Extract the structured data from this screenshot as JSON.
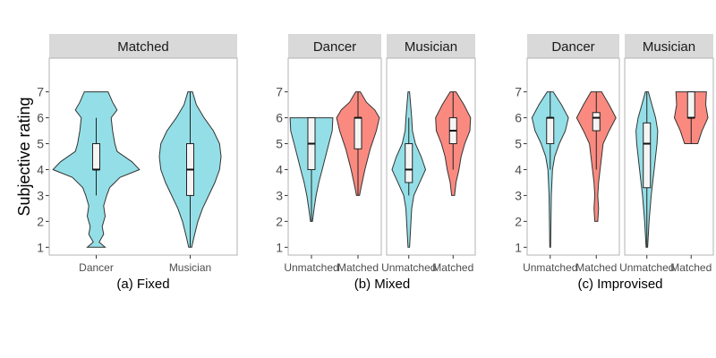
{
  "chart_data": {
    "type": "violin",
    "ylabel": "Subjective rating",
    "ylim": [
      0.7,
      8.3
    ],
    "yticks": [
      1,
      2,
      3,
      4,
      5,
      6,
      7
    ],
    "grid": false,
    "colors": {
      "Unmatched": "#94DFE7",
      "Matched": "#FA8A80",
      "Fixed": "#94DFE7"
    },
    "panels": [
      {
        "caption": "(a) Fixed",
        "facets": [
          {
            "strip": "Matched",
            "categories": [
              "Dancer",
              "Musician"
            ],
            "violins": [
              {
                "category": "Dancer",
                "fill": "Fixed",
                "median": 4,
                "q1": 4,
                "q3": 5,
                "whisker_low": 3,
                "whisker_high": 6,
                "density": [
                  [
                    1,
                    0.12
                  ],
                  [
                    1.2,
                    0.04
                  ],
                  [
                    1.5,
                    0.1
                  ],
                  [
                    1.8,
                    0.08
                  ],
                  [
                    2.2,
                    0.12
                  ],
                  [
                    2.6,
                    0.1
                  ],
                  [
                    3,
                    0.14
                  ],
                  [
                    3.3,
                    0.18
                  ],
                  [
                    3.7,
                    0.32
                  ],
                  [
                    4,
                    0.58
                  ],
                  [
                    4.3,
                    0.48
                  ],
                  [
                    4.7,
                    0.28
                  ],
                  [
                    5,
                    0.25
                  ],
                  [
                    5.5,
                    0.22
                  ],
                  [
                    6,
                    0.2
                  ],
                  [
                    6.3,
                    0.28
                  ],
                  [
                    6.6,
                    0.22
                  ],
                  [
                    7,
                    0.16
                  ]
                ]
              },
              {
                "category": "Musician",
                "fill": "Fixed",
                "median": 4,
                "q1": 3,
                "q3": 5,
                "whisker_low": 1,
                "whisker_high": 7,
                "density": [
                  [
                    1,
                    0.02
                  ],
                  [
                    1.4,
                    0.05
                  ],
                  [
                    2,
                    0.1
                  ],
                  [
                    2.5,
                    0.16
                  ],
                  [
                    3,
                    0.24
                  ],
                  [
                    3.5,
                    0.32
                  ],
                  [
                    4,
                    0.38
                  ],
                  [
                    4.5,
                    0.4
                  ],
                  [
                    5,
                    0.38
                  ],
                  [
                    5.5,
                    0.3
                  ],
                  [
                    6,
                    0.18
                  ],
                  [
                    6.5,
                    0.08
                  ],
                  [
                    7,
                    0.03
                  ]
                ]
              }
            ]
          }
        ]
      },
      {
        "caption": "(b) Mixed",
        "facets": [
          {
            "strip": "Dancer",
            "categories": [
              "Unmatched",
              "Matched"
            ],
            "violins": [
              {
                "category": "Unmatched",
                "fill": "Unmatched",
                "median": 5,
                "q1": 4,
                "q3": 6,
                "whisker_low": 2,
                "whisker_high": 6,
                "density": [
                  [
                    2,
                    0.03
                  ],
                  [
                    2.5,
                    0.08
                  ],
                  [
                    3,
                    0.14
                  ],
                  [
                    3.5,
                    0.22
                  ],
                  [
                    4,
                    0.32
                  ],
                  [
                    4.5,
                    0.42
                  ],
                  [
                    5,
                    0.52
                  ],
                  [
                    5.5,
                    0.62
                  ],
                  [
                    6,
                    0.64
                  ]
                ]
              },
              {
                "category": "Matched",
                "fill": "Matched",
                "median": 6,
                "q1": 4.8,
                "q3": 6,
                "whisker_low": 3,
                "whisker_high": 7,
                "density": [
                  [
                    3,
                    0.04
                  ],
                  [
                    3.3,
                    0.08
                  ],
                  [
                    4,
                    0.18
                  ],
                  [
                    4.8,
                    0.32
                  ],
                  [
                    5.5,
                    0.48
                  ],
                  [
                    6,
                    0.56
                  ],
                  [
                    6.3,
                    0.44
                  ],
                  [
                    6.6,
                    0.22
                  ],
                  [
                    7,
                    0.06
                  ]
                ]
              }
            ]
          },
          {
            "strip": "Musician",
            "categories": [
              "Unmatched",
              "Matched"
            ],
            "violins": [
              {
                "category": "Unmatched",
                "fill": "Unmatched",
                "median": 4,
                "q1": 3.5,
                "q3": 5,
                "whisker_low": 3,
                "whisker_high": 6,
                "density": [
                  [
                    1,
                    0.02
                  ],
                  [
                    1.5,
                    0.04
                  ],
                  [
                    2,
                    0.06
                  ],
                  [
                    2.5,
                    0.08
                  ],
                  [
                    3,
                    0.14
                  ],
                  [
                    3.5,
                    0.3
                  ],
                  [
                    4,
                    0.46
                  ],
                  [
                    4.5,
                    0.34
                  ],
                  [
                    5,
                    0.18
                  ],
                  [
                    5.5,
                    0.1
                  ],
                  [
                    6,
                    0.08
                  ],
                  [
                    6.5,
                    0.05
                  ],
                  [
                    7,
                    0.02
                  ]
                ]
              },
              {
                "category": "Matched",
                "fill": "Matched",
                "median": 5.5,
                "q1": 5,
                "q3": 6,
                "whisker_low": 4,
                "whisker_high": 7,
                "density": [
                  [
                    3,
                    0.04
                  ],
                  [
                    3.5,
                    0.08
                  ],
                  [
                    4,
                    0.16
                  ],
                  [
                    4.5,
                    0.22
                  ],
                  [
                    5,
                    0.32
                  ],
                  [
                    5.5,
                    0.46
                  ],
                  [
                    6,
                    0.48
                  ],
                  [
                    6.5,
                    0.3
                  ],
                  [
                    7,
                    0.08
                  ]
                ]
              }
            ]
          }
        ]
      },
      {
        "caption": "(c) Improvised",
        "facets": [
          {
            "strip": "Dancer",
            "categories": [
              "Unmatched",
              "Matched"
            ],
            "violins": [
              {
                "category": "Unmatched",
                "fill": "Unmatched",
                "median": 6,
                "q1": 5,
                "q3": 6,
                "whisker_low": 4,
                "whisker_high": 7,
                "density": [
                  [
                    1,
                    0.01
                  ],
                  [
                    2,
                    0.02
                  ],
                  [
                    3,
                    0.03
                  ],
                  [
                    4,
                    0.06
                  ],
                  [
                    4.5,
                    0.12
                  ],
                  [
                    5,
                    0.24
                  ],
                  [
                    5.5,
                    0.4
                  ],
                  [
                    6,
                    0.48
                  ],
                  [
                    6.5,
                    0.3
                  ],
                  [
                    7,
                    0.08
                  ]
                ]
              },
              {
                "category": "Matched",
                "fill": "Matched",
                "median": 6,
                "q1": 5.5,
                "q3": 6.2,
                "whisker_low": 4,
                "whisker_high": 7,
                "density": [
                  [
                    2,
                    0.04
                  ],
                  [
                    2.5,
                    0.06
                  ],
                  [
                    3,
                    0.04
                  ],
                  [
                    3.5,
                    0.06
                  ],
                  [
                    4,
                    0.1
                  ],
                  [
                    4.5,
                    0.14
                  ],
                  [
                    5,
                    0.18
                  ],
                  [
                    5.5,
                    0.34
                  ],
                  [
                    6,
                    0.52
                  ],
                  [
                    6.5,
                    0.34
                  ],
                  [
                    7,
                    0.14
                  ]
                ]
              }
            ]
          },
          {
            "strip": "Musician",
            "categories": [
              "Unmatched",
              "Matched"
            ],
            "violins": [
              {
                "category": "Unmatched",
                "fill": "Unmatched",
                "median": 5,
                "q1": 3.3,
                "q3": 5.8,
                "whisker_low": 1,
                "whisker_high": 7,
                "density": [
                  [
                    1,
                    0.02
                  ],
                  [
                    2,
                    0.06
                  ],
                  [
                    3,
                    0.12
                  ],
                  [
                    4,
                    0.2
                  ],
                  [
                    5,
                    0.28
                  ],
                  [
                    5.5,
                    0.3
                  ],
                  [
                    6,
                    0.24
                  ],
                  [
                    6.5,
                    0.14
                  ],
                  [
                    7,
                    0.04
                  ]
                ]
              },
              {
                "category": "Matched",
                "fill": "Matched",
                "median": 6,
                "q1": 6,
                "q3": 7,
                "whisker_low": 5,
                "whisker_high": 7,
                "density": [
                  [
                    5,
                    0.18
                  ],
                  [
                    5.5,
                    0.3
                  ],
                  [
                    6,
                    0.46
                  ],
                  [
                    6.5,
                    0.4
                  ],
                  [
                    7,
                    0.42
                  ]
                ]
              }
            ]
          }
        ]
      }
    ]
  }
}
